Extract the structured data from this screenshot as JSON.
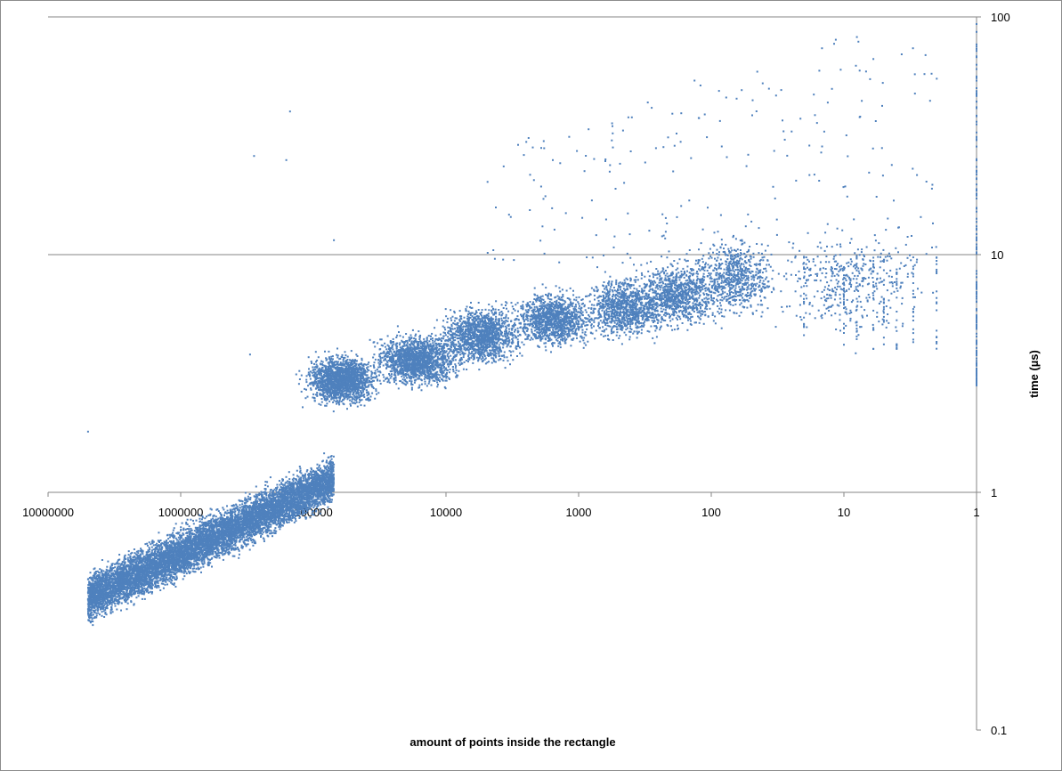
{
  "chart_data": {
    "type": "scatter",
    "title": "",
    "xlabel": "amount of points inside the rectangle",
    "ylabel": "time (µs)",
    "x_scale": "log",
    "x_reversed": true,
    "y_scale": "log",
    "xlim": [
      10000000,
      1
    ],
    "ylim": [
      0.1,
      100
    ],
    "x_ticks": [
      "10000000",
      "1000000",
      "100000",
      "10000",
      "1000",
      "100",
      "10",
      "1"
    ],
    "y_ticks": [
      "100",
      "10",
      "1",
      "0.1"
    ],
    "y_axis_position": "right",
    "grid": "horizontal major lines at 1, 10, 100",
    "legend": "none",
    "marker_color": "#4F81BD",
    "series": [
      {
        "clusters": [
          {
            "x_range": [
              5000000,
              70000
            ],
            "y_range": [
              0.28,
              1.45
            ],
            "trend": "rising",
            "approx_points": 9000
          },
          {
            "x_range": [
              130000,
              30000
            ],
            "y_range": [
              2.2,
              4.0
            ],
            "approx_points": 1800
          },
          {
            "x_range": [
              40000,
              7000
            ],
            "y_range": [
              2.6,
              5.0
            ],
            "approx_points": 1600
          },
          {
            "x_range": [
              12000,
              2500
            ],
            "y_range": [
              3.2,
              6.5
            ],
            "approx_points": 1400
          },
          {
            "x_range": [
              3500,
              700
            ],
            "y_range": [
              3.8,
              7.5
            ],
            "approx_points": 1200
          },
          {
            "x_range": [
              1000,
              200
            ],
            "y_range": [
              4.0,
              9.0
            ],
            "approx_points": 1000
          },
          {
            "x_range": [
              400,
              80
            ],
            "y_range": [
              4.5,
              10.5
            ],
            "approx_points": 900
          },
          {
            "x_range": [
              150,
              30
            ],
            "y_range": [
              5.0,
              13.0
            ],
            "approx_points": 700
          },
          {
            "x_range": [
              40,
              2
            ],
            "y_range": [
              4.0,
              15.0
            ],
            "approx_points": 400
          }
        ],
        "discrete_columns_x": [
          20,
          10,
          8,
          6,
          5,
          4,
          3,
          2
        ],
        "discrete_columns_y_range": [
          4.0,
          10.0
        ],
        "x1_y_range": [
          2.8,
          100
        ],
        "outliers": [
          {
            "x": 280000,
            "y": 26
          },
          {
            "x": 150000,
            "y": 40
          },
          {
            "x": 160000,
            "y": 25
          },
          {
            "x": 70000,
            "y": 11.5
          },
          {
            "x": 300000,
            "y": 3.8
          },
          {
            "x": 5000000,
            "y": 1.8
          }
        ]
      }
    ]
  }
}
